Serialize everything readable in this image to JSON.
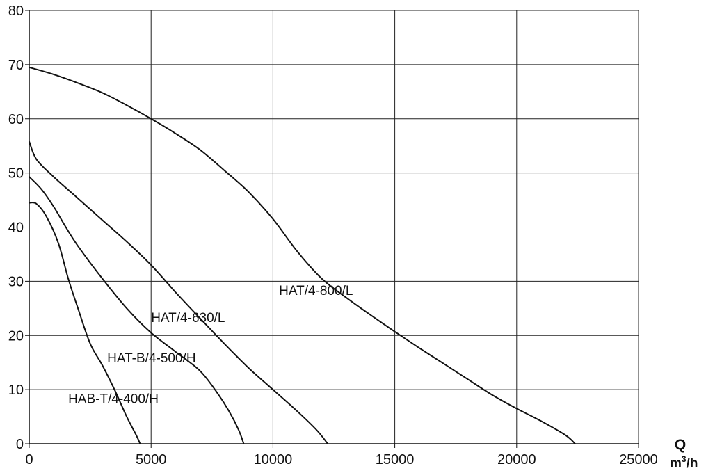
{
  "chart_data": {
    "type": "line",
    "xlim": [
      0,
      25000
    ],
    "ylim": [
      0,
      80
    ],
    "x_ticks": [
      0,
      5000,
      10000,
      15000,
      20000,
      25000
    ],
    "y_ticks": [
      0,
      10,
      20,
      30,
      40,
      50,
      60,
      70,
      80
    ],
    "grid": true,
    "xlabel": {
      "symbol": "Q",
      "unit_base": "m",
      "unit_sup": "3",
      "unit_tail": "/h"
    },
    "ylabel": "",
    "series": [
      {
        "name": "HAT/4-800/L",
        "points": [
          [
            0,
            69.5
          ],
          [
            1000,
            68.2
          ],
          [
            2000,
            66.6
          ],
          [
            3000,
            64.8
          ],
          [
            4000,
            62.5
          ],
          [
            5000,
            60.0
          ],
          [
            6000,
            57.3
          ],
          [
            7000,
            54.3
          ],
          [
            8000,
            50.5
          ],
          [
            9000,
            46.5
          ],
          [
            10000,
            41.5
          ],
          [
            11000,
            35.5
          ],
          [
            12000,
            30.5
          ],
          [
            13000,
            27.0
          ],
          [
            14000,
            23.8
          ],
          [
            15000,
            20.7
          ],
          [
            16000,
            17.7
          ],
          [
            17000,
            14.8
          ],
          [
            18000,
            11.9
          ],
          [
            19000,
            9.0
          ],
          [
            20000,
            6.5
          ],
          [
            21000,
            4.2
          ],
          [
            22000,
            1.6
          ],
          [
            22400,
            0
          ]
        ]
      },
      {
        "name": "HAT/4-630/L",
        "points": [
          [
            0,
            55.8
          ],
          [
            300,
            52.5
          ],
          [
            1000,
            49.3
          ],
          [
            2000,
            45.3
          ],
          [
            3000,
            41.3
          ],
          [
            4000,
            37.3
          ],
          [
            5000,
            33.0
          ],
          [
            6000,
            28.0
          ],
          [
            7000,
            23.2
          ],
          [
            8000,
            18.5
          ],
          [
            9000,
            14.0
          ],
          [
            10000,
            10.0
          ],
          [
            11000,
            6.0
          ],
          [
            11800,
            2.5
          ],
          [
            12250,
            0
          ]
        ]
      },
      {
        "name": "HAT-B/4-500/H",
        "points": [
          [
            0,
            49.3
          ],
          [
            500,
            47.0
          ],
          [
            1000,
            43.8
          ],
          [
            1500,
            40.0
          ],
          [
            2000,
            36.5
          ],
          [
            3000,
            30.5
          ],
          [
            4000,
            25.0
          ],
          [
            5000,
            20.5
          ],
          [
            6000,
            17.0
          ],
          [
            7000,
            13.5
          ],
          [
            7700,
            9.5
          ],
          [
            8200,
            6.0
          ],
          [
            8600,
            2.5
          ],
          [
            8800,
            0
          ]
        ]
      },
      {
        "name": "HAB-T/4-400/H",
        "points": [
          [
            0,
            44.5
          ],
          [
            300,
            44.3
          ],
          [
            700,
            42.0
          ],
          [
            1200,
            37.0
          ],
          [
            1600,
            30.5
          ],
          [
            2000,
            25.0
          ],
          [
            2500,
            18.5
          ],
          [
            3000,
            14.5
          ],
          [
            3500,
            10.0
          ],
          [
            4000,
            5.0
          ],
          [
            4400,
            1.5
          ],
          [
            4550,
            0
          ]
        ]
      }
    ],
    "label_anchors": [
      {
        "text": "HAT/4-800/L",
        "x": 10250,
        "y": 27.5
      },
      {
        "text": "HAT/4-630/L",
        "x": 5000,
        "y": 22.5
      },
      {
        "text": "HAT-B/4-500/H",
        "x": 3200,
        "y": 15.0
      },
      {
        "text": "HAB-T/4-400/H",
        "x": 1600,
        "y": 7.5
      }
    ]
  }
}
